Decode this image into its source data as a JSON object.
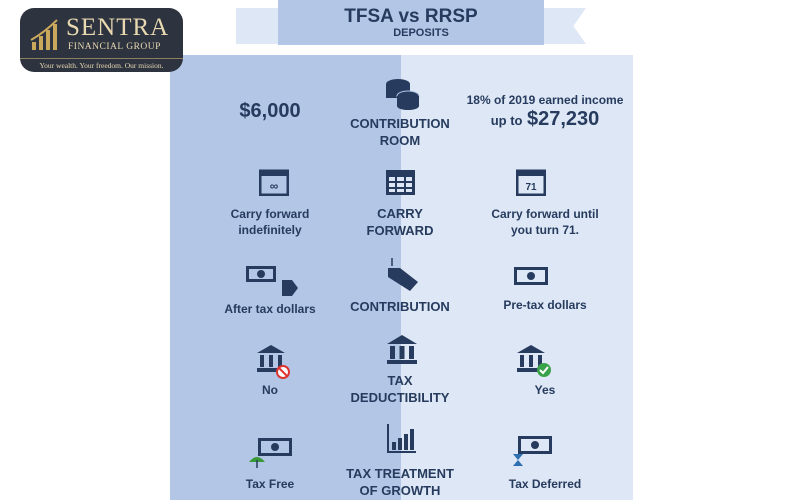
{
  "logo": {
    "name": "SENTRA",
    "sub": "FINANCIAL GROUP",
    "tagline": "Your wealth. Your freedom. Our mission."
  },
  "header": {
    "title": "TFSA vs RRSP",
    "subtitle": "DEPOSITS"
  },
  "rows": [
    {
      "label": "CONTRIBUTION ROOM",
      "label1": "CONTRIBUTION",
      "label2": "ROOM",
      "tfsa": "$6,000",
      "rrsp_line1": "18% of 2019 earned income",
      "rrsp_prefix": "up to",
      "rrsp_amount": "$27,230",
      "icon": "coins-icon"
    },
    {
      "label1": "CARRY",
      "label2": "FORWARD",
      "tfsa1": "Carry forward",
      "tfsa2": "indefinitely",
      "rrsp1": "Carry forward until",
      "rrsp2": "you turn 71.",
      "rrsp_icon_text": "71",
      "icon": "calendar-icon"
    },
    {
      "label": "CONTRIBUTION",
      "tfsa": "After tax dollars",
      "rrsp": "Pre-tax dollars",
      "icon": "price-tag-icon"
    },
    {
      "label1": "TAX",
      "label2": "DEDUCTIBILITY",
      "tfsa": "No",
      "rrsp": "Yes",
      "icon": "bank-icon"
    },
    {
      "label1": "TAX TREATMENT",
      "label2": "OF GROWTH",
      "tfsa": "Tax Free",
      "rrsp": "Tax Deferred",
      "icon": "growth-chart-icon"
    }
  ],
  "colors": {
    "navy": "#263b5e",
    "tfsa_bg": "#b3c6e6",
    "rrsp_bg": "#dde7f5"
  }
}
